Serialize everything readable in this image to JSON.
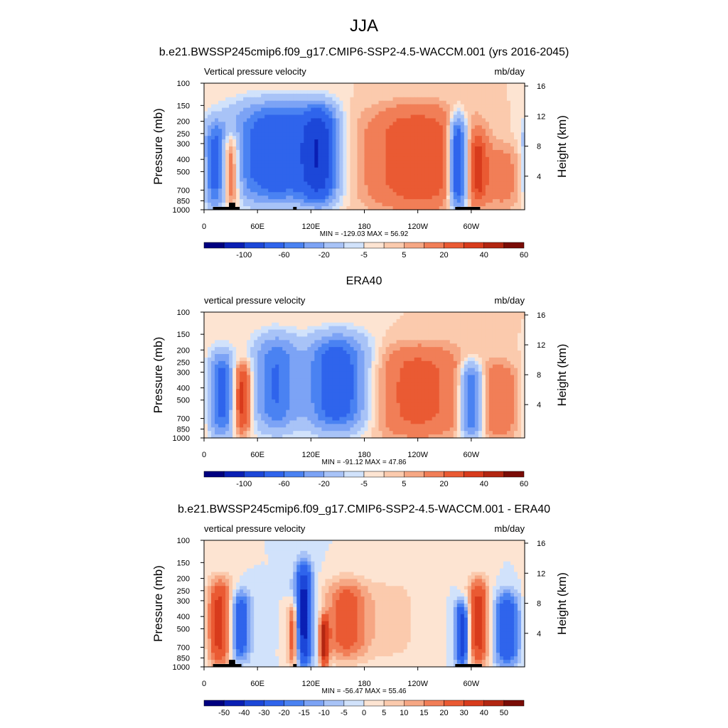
{
  "page": {
    "title": "JJA"
  },
  "palette": {
    "colors": [
      "#000080",
      "#0a1fb4",
      "#1c47d8",
      "#2f64ec",
      "#4a82f2",
      "#7ca3f5",
      "#a8c3f7",
      "#d1e2fb",
      "#fde4d2",
      "#fbcaad",
      "#f6a784",
      "#f17e57",
      "#ea5a33",
      "#d83b1c",
      "#b22611",
      "#7a0c06"
    ]
  },
  "chart_data": [
    {
      "type": "heatmap",
      "id": "model",
      "title": "b.e21.BWSSP245cmip6.f09_g17.CMIP6-SSP2-4.5-WACCM.001 (yrs 2016-2045)",
      "left_label": "Vertical pressure velocity",
      "units": "mb/day",
      "ylabel": "Pressure (mb)",
      "y2label": "Height (km)",
      "x_ticks": [
        "0",
        "60E",
        "120E",
        "180",
        "120W",
        "60W"
      ],
      "x_tick_lon": [
        0,
        60,
        120,
        180,
        240,
        300
      ],
      "x_range": [
        0,
        360
      ],
      "y_ticks": [
        "100",
        "150",
        "200",
        "250",
        "300",
        "400",
        "500",
        "700",
        "850",
        "1000"
      ],
      "y_tick_p": [
        100,
        150,
        200,
        250,
        300,
        400,
        500,
        700,
        850,
        1000
      ],
      "y_range": [
        100,
        1000
      ],
      "y2_ticks": [
        "16",
        "12",
        "8",
        "4"
      ],
      "y2_tick_km": [
        16,
        12,
        8,
        4
      ],
      "stats": "MIN = -129.03  MAX =  56.92",
      "min": -129.03,
      "max": 56.92,
      "colorbar_labels": [
        "-100",
        "-60",
        "-20",
        "-5",
        "5",
        "20",
        "40",
        "60"
      ],
      "colorbar_levels": [
        -120,
        -100,
        -80,
        -60,
        -40,
        -30,
        -20,
        -10,
        -5,
        0,
        5,
        10,
        20,
        30,
        40,
        50,
        60
      ],
      "features": [
        {
          "lon": 12,
          "width": 12,
          "pmin": 200,
          "pmax": 1000,
          "value": -40
        },
        {
          "lon": 30,
          "width": 10,
          "pmin": 250,
          "pmax": 900,
          "value": 35
        },
        {
          "lon": 80,
          "width": 50,
          "pmin": 140,
          "pmax": 900,
          "value": -55
        },
        {
          "lon": 130,
          "width": 20,
          "pmin": 150,
          "pmax": 900,
          "value": -60
        },
        {
          "lon": 240,
          "width": 60,
          "pmin": 150,
          "pmax": 1000,
          "value": 30
        },
        {
          "lon": 285,
          "width": 10,
          "pmin": 180,
          "pmax": 1000,
          "value": -70
        },
        {
          "lon": 308,
          "width": 10,
          "pmin": 250,
          "pmax": 900,
          "value": 25
        },
        {
          "lon": 338,
          "width": 25,
          "pmin": 300,
          "pmax": 1000,
          "value": 12
        }
      ],
      "land": [
        {
          "lon0": 10,
          "lon1": 40,
          "p": 950
        },
        {
          "lon0": 28,
          "lon1": 35,
          "p": 880
        },
        {
          "lon0": 100,
          "lon1": 104,
          "p": 950
        },
        {
          "lon0": 282,
          "lon1": 310,
          "p": 950
        }
      ]
    },
    {
      "type": "heatmap",
      "id": "era40",
      "title": "ERA40",
      "left_label": "vertical pressure velocity",
      "units": "mb/day",
      "ylabel": "Pressure (mb)",
      "y2label": "Height (km)",
      "x_ticks": [
        "0",
        "60E",
        "120E",
        "180",
        "120W",
        "60W"
      ],
      "x_tick_lon": [
        0,
        60,
        120,
        180,
        240,
        300
      ],
      "x_range": [
        0,
        360
      ],
      "y_ticks": [
        "100",
        "150",
        "200",
        "250",
        "300",
        "400",
        "500",
        "700",
        "850",
        "1000"
      ],
      "y_tick_p": [
        100,
        150,
        200,
        250,
        300,
        400,
        500,
        700,
        850,
        1000
      ],
      "y_range": [
        100,
        1000
      ],
      "y2_ticks": [
        "16",
        "12",
        "8",
        "4"
      ],
      "y2_tick_km": [
        16,
        12,
        8,
        4
      ],
      "stats": "MIN = -91.12  MAX =  47.86",
      "min": -91.12,
      "max": 47.86,
      "colorbar_labels": [
        "-100",
        "-60",
        "-20",
        "-5",
        "5",
        "20",
        "40",
        "60"
      ],
      "colorbar_levels": [
        -120,
        -100,
        -80,
        -60,
        -40,
        -30,
        -20,
        -10,
        -5,
        0,
        5,
        10,
        20,
        30,
        40,
        50,
        60
      ],
      "features": [
        {
          "lon": 20,
          "width": 14,
          "pmin": 200,
          "pmax": 1000,
          "value": -45
        },
        {
          "lon": 43,
          "width": 10,
          "pmin": 250,
          "pmax": 900,
          "value": 40
        },
        {
          "lon": 80,
          "width": 25,
          "pmin": 150,
          "pmax": 900,
          "value": -40
        },
        {
          "lon": 150,
          "width": 35,
          "pmin": 150,
          "pmax": 900,
          "value": -55
        },
        {
          "lon": 240,
          "width": 55,
          "pmin": 180,
          "pmax": 1000,
          "value": 25
        },
        {
          "lon": 300,
          "width": 12,
          "pmin": 250,
          "pmax": 1000,
          "value": -50
        },
        {
          "lon": 332,
          "width": 20,
          "pmin": 250,
          "pmax": 1000,
          "value": 18
        }
      ],
      "land": []
    },
    {
      "type": "heatmap",
      "id": "diff",
      "title": "b.e21.BWSSP245cmip6.f09_g17.CMIP6-SSP2-4.5-WACCM.001 - ERA40",
      "left_label": "vertical pressure velocity",
      "units": "mb/day",
      "ylabel": "Pressure (mb)",
      "y2label": "Height (km)",
      "x_ticks": [
        "0",
        "60E",
        "120E",
        "180",
        "120W",
        "60W"
      ],
      "x_tick_lon": [
        0,
        60,
        120,
        180,
        240,
        300
      ],
      "x_range": [
        0,
        360
      ],
      "y_ticks": [
        "100",
        "150",
        "200",
        "250",
        "300",
        "400",
        "500",
        "700",
        "850",
        "1000"
      ],
      "y_tick_p": [
        100,
        150,
        200,
        250,
        300,
        400,
        500,
        700,
        850,
        1000
      ],
      "y_range": [
        100,
        1000
      ],
      "y2_ticks": [
        "16",
        "12",
        "8",
        "4"
      ],
      "y2_tick_km": [
        16,
        12,
        8,
        4
      ],
      "stats": "MIN = -56.47  MAX =  55.46",
      "min": -56.47,
      "max": 55.46,
      "colorbar_labels": [
        "-50",
        "-40",
        "-30",
        "-20",
        "-15",
        "-10",
        "-5",
        "0",
        "5",
        "10",
        "15",
        "20",
        "30",
        "40",
        "50"
      ],
      "colorbar_levels": [
        -60,
        -50,
        -40,
        -30,
        -20,
        -15,
        -10,
        -5,
        0,
        5,
        10,
        15,
        20,
        30,
        40,
        50,
        60
      ],
      "features": [
        {
          "lon": 18,
          "width": 14,
          "pmin": 200,
          "pmax": 1000,
          "value": 35
        },
        {
          "lon": 40,
          "width": 12,
          "pmin": 250,
          "pmax": 900,
          "value": -30
        },
        {
          "lon": 100,
          "width": 6,
          "pmin": 300,
          "pmax": 1000,
          "value": 30
        },
        {
          "lon": 112,
          "width": 10,
          "pmin": 150,
          "pmax": 1000,
          "value": -45
        },
        {
          "lon": 135,
          "width": 5,
          "pmin": 400,
          "pmax": 1000,
          "value": 40
        },
        {
          "lon": 160,
          "width": 25,
          "pmin": 200,
          "pmax": 900,
          "value": 25
        },
        {
          "lon": 212,
          "width": 30,
          "pmin": 200,
          "pmax": 900,
          "value": 8
        },
        {
          "lon": 290,
          "width": 8,
          "pmin": 300,
          "pmax": 1000,
          "value": -40
        },
        {
          "lon": 308,
          "width": 12,
          "pmin": 200,
          "pmax": 1000,
          "value": 35
        },
        {
          "lon": 340,
          "width": 15,
          "pmin": 250,
          "pmax": 1000,
          "value": -30
        }
      ],
      "land": [
        {
          "lon0": 10,
          "lon1": 42,
          "p": 950
        },
        {
          "lon0": 28,
          "lon1": 35,
          "p": 880
        },
        {
          "lon0": 100,
          "lon1": 104,
          "p": 950
        },
        {
          "lon0": 282,
          "lon1": 312,
          "p": 950
        }
      ]
    }
  ]
}
